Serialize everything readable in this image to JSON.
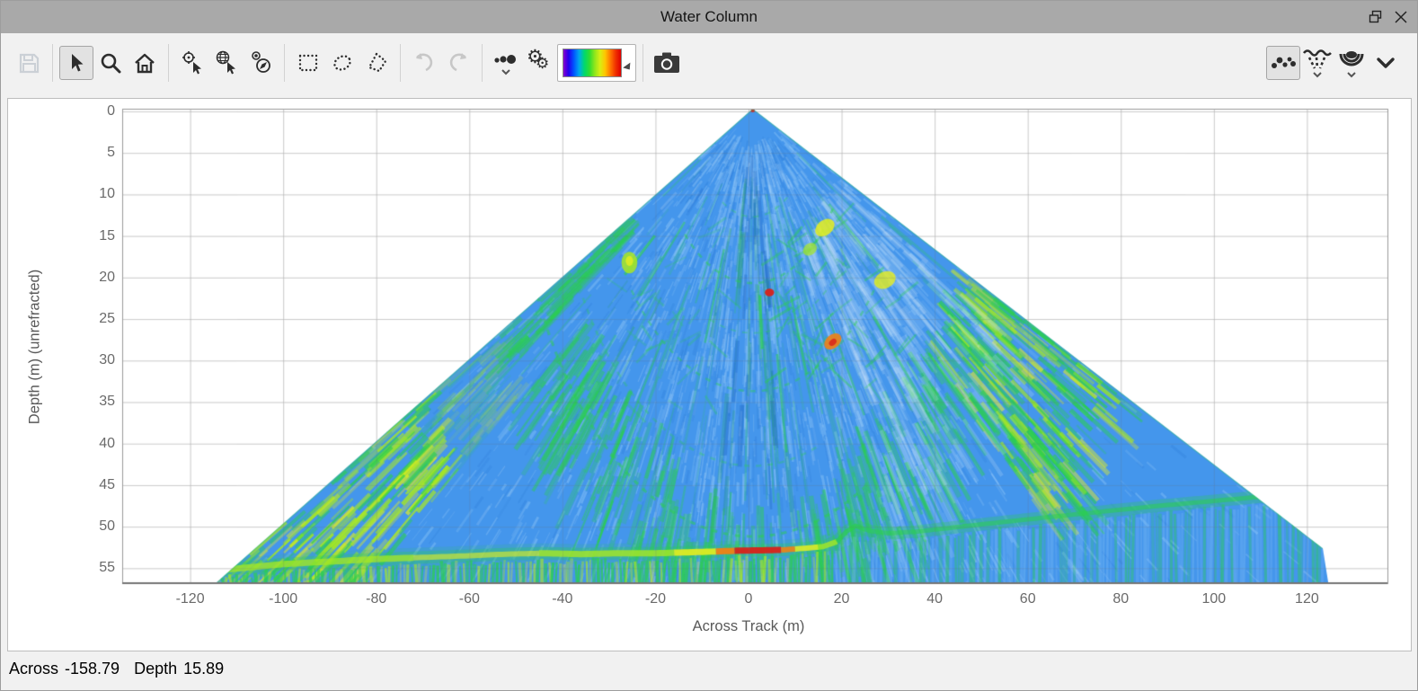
{
  "window": {
    "title": "Water Column"
  },
  "titlebar_controls": [
    {
      "icon": "float-window-icon"
    },
    {
      "icon": "close-icon"
    }
  ],
  "toolbar": {
    "groups": [
      {
        "buttons": [
          {
            "icon": "save-icon",
            "state": "disabled"
          }
        ]
      },
      {
        "buttons": [
          {
            "icon": "select-cursor-icon",
            "state": "selected"
          },
          {
            "icon": "zoom-magnifier-icon",
            "state": "normal"
          },
          {
            "icon": "home-icon",
            "state": "normal"
          }
        ]
      },
      {
        "buttons": [
          {
            "icon": "pick-target-cursor-icon",
            "state": "normal"
          },
          {
            "icon": "pick-globe-cursor-icon",
            "state": "normal"
          },
          {
            "icon": "compass-point-icon",
            "state": "normal"
          }
        ]
      },
      {
        "buttons": [
          {
            "icon": "select-rectangle-icon",
            "state": "normal"
          },
          {
            "icon": "select-ellipse-icon",
            "state": "normal"
          },
          {
            "icon": "select-polygon-icon",
            "state": "normal"
          }
        ]
      },
      {
        "buttons": [
          {
            "icon": "undo-icon",
            "state": "disabled"
          },
          {
            "icon": "redo-icon",
            "state": "disabled"
          }
        ]
      },
      {
        "buttons": [
          {
            "icon": "point-size-icon",
            "state": "normal"
          },
          {
            "icon": "settings-gears-icon",
            "state": "normal"
          },
          {
            "icon": "colormap-rainbow-swatch",
            "state": "normal"
          }
        ]
      },
      {
        "buttons": [
          {
            "icon": "camera-snapshot-icon",
            "state": "normal"
          }
        ]
      }
    ],
    "right_buttons": [
      {
        "icon": "points-display-icon",
        "state": "selected"
      },
      {
        "icon": "swath-fan-display-icon",
        "state": "normal"
      },
      {
        "icon": "beam-arcs-display-icon",
        "state": "normal"
      },
      {
        "icon": "collapse-chevron-icon",
        "state": "normal"
      }
    ],
    "colormap_stops": [
      "#8800cc",
      "#2200ee",
      "#0055ff",
      "#00a8ee",
      "#00d86e",
      "#30dd30",
      "#90e61c",
      "#d8ee14",
      "#ffc400",
      "#ff7600",
      "#f03000",
      "#dd0000"
    ]
  },
  "status": {
    "across_label": "Across",
    "across_value": "-158.79",
    "depth_label": "Depth",
    "depth_value": "15.89"
  },
  "chart_data": {
    "type": "watercolumn-fan-heatmap",
    "title": "Water Column",
    "xaxis": {
      "label": "Across Track (m)",
      "range": [
        -134.6,
        137.3
      ],
      "ticks": [
        -120,
        -100,
        -80,
        -60,
        -40,
        -20,
        0,
        20,
        40,
        60,
        80,
        100,
        120
      ]
    },
    "yaxis": {
      "label": "Depth (m) (unrefracted)",
      "range": [
        -0.32,
        56.8
      ],
      "ticks": [
        0,
        5,
        10,
        15,
        20,
        25,
        30,
        35,
        40,
        45,
        50,
        55
      ]
    },
    "grid": "on",
    "fan": {
      "apex": {
        "across": 0.9,
        "depth": -0.32
      },
      "outline": [
        [
          123.4,
          52.6
        ],
        [
          124.6,
          56.8
        ],
        [
          -114.5,
          56.8
        ]
      ],
      "left_edge_angle_deg": -63.7,
      "right_edge_angle_deg": 66.6,
      "colors": {
        "base": "#4496ec",
        "light": "#8ec6f8",
        "dark": "#2d7cd8",
        "sheen": "#d8ecfc",
        "green": "#2bd04c",
        "green_dark": "#1ea844",
        "yellow_green": "#a8e822",
        "yellow": "#e6ee1e",
        "orange": "#f08214",
        "red": "#d8231a"
      },
      "noise_seed": 11
    },
    "features": {
      "seafloor_points": [
        [
          -113,
          55.2
        ],
        [
          -100,
          54.5
        ],
        [
          -90,
          54.2
        ],
        [
          -80,
          53.9
        ],
        [
          -70,
          53.7
        ],
        [
          -60,
          53.5
        ],
        [
          -52,
          53.3
        ],
        [
          -44,
          53.2
        ],
        [
          -36,
          53.3
        ],
        [
          -28,
          53.2
        ],
        [
          -20,
          53.2
        ],
        [
          -14,
          53.1
        ],
        [
          -8,
          53.0
        ],
        [
          -3,
          52.9
        ],
        [
          2,
          52.85
        ],
        [
          7,
          52.8
        ],
        [
          12,
          52.6
        ],
        [
          16,
          52.4
        ],
        [
          19,
          51.8
        ],
        [
          21,
          50.6
        ],
        [
          23,
          49.9
        ],
        [
          26,
          50.5
        ],
        [
          30,
          50.8
        ],
        [
          36,
          50.6
        ],
        [
          44,
          50.1
        ],
        [
          52,
          49.6
        ],
        [
          62,
          49.0
        ],
        [
          74,
          48.3
        ],
        [
          88,
          47.5
        ],
        [
          102,
          46.8
        ],
        [
          114,
          46.2
        ],
        [
          123,
          45.8
        ]
      ],
      "seafloor_colors": [
        {
          "from": -113,
          "to": -72,
          "c": "yellow_green",
          "w": 7,
          "al": 0.75
        },
        {
          "from": -72,
          "to": -45,
          "c": "yellow",
          "w": 6,
          "al": 0.6
        },
        {
          "from": -45,
          "to": -16,
          "c": "yellow_green",
          "w": 7,
          "al": 0.8
        },
        {
          "from": -16,
          "to": -7,
          "c": "yellow",
          "w": 7,
          "al": 0.9
        },
        {
          "from": -7,
          "to": -3,
          "c": "orange",
          "w": 7,
          "al": 0.95
        },
        {
          "from": -3,
          "to": 7,
          "c": "red",
          "w": 7,
          "al": 0.95
        },
        {
          "from": 7,
          "to": 10,
          "c": "orange",
          "w": 6,
          "al": 0.9
        },
        {
          "from": 10,
          "to": 15,
          "c": "yellow",
          "w": 6,
          "al": 0.85
        },
        {
          "from": 15,
          "to": 19,
          "c": "yellow_green",
          "w": 6,
          "al": 0.8
        },
        {
          "from": 19,
          "to": 24,
          "c": "green",
          "w": 5,
          "al": 0.7
        },
        {
          "from": 24,
          "to": 124,
          "c": "green",
          "w": 5,
          "al": 0.55
        }
      ],
      "arcs": [
        {
          "r": 21,
          "a0": -44,
          "a1": 56,
          "al": 0.45,
          "w": 2.5
        },
        {
          "r": 34,
          "a0": -50,
          "a1": 56,
          "al": 0.4,
          "w": 2.5
        },
        {
          "r": 51.5,
          "a0": -64,
          "a1": 30,
          "al": 0.5,
          "w": 3
        },
        {
          "r": 13,
          "a0": -30,
          "a1": 40,
          "al": 0.3,
          "w": 2
        },
        {
          "r": 27,
          "a0": -20,
          "a1": 50,
          "al": 0.3,
          "w": 2
        },
        {
          "r": 43,
          "a0": -58,
          "a1": 20,
          "al": 0.3,
          "w": 2.5
        }
      ],
      "streaks": [
        {
          "ang": 4,
          "r0": 22.5,
          "r1": 29,
          "al": 0.7,
          "w": 3
        },
        {
          "ang": -54,
          "r0": 26,
          "r1": 34,
          "al": 0.6,
          "w": 3
        },
        {
          "ang": 20,
          "r0": 24,
          "r1": 34,
          "al": 0.5,
          "w": 2.5
        },
        {
          "ang": 33,
          "r0": 30,
          "r1": 44,
          "al": 0.4,
          "w": 2.5
        },
        {
          "ang": -20,
          "r0": 18,
          "r1": 30,
          "al": 0.45,
          "w": 2.5
        },
        {
          "ang": 10,
          "r0": 30,
          "r1": 42,
          "al": 0.5,
          "w": 2.5
        },
        {
          "ang": 46,
          "r0": 36,
          "r1": 52,
          "al": 0.45,
          "w": 3
        },
        {
          "ang": -35,
          "r0": 34,
          "r1": 46,
          "al": 0.4,
          "w": 2.5
        },
        {
          "ang": -47,
          "r0": 20,
          "r1": 33,
          "al": 0.45,
          "w": 2.5
        },
        {
          "ang": 55,
          "r0": 20,
          "r1": 33,
          "al": 0.4,
          "w": 2.5
        }
      ],
      "radial_groups": [
        {
          "ang0": -63.6,
          "ang1": -55.5,
          "r0": 58,
          "r1": 132,
          "n": 300,
          "palette": "bright"
        },
        {
          "ang0": -63.2,
          "ang1": -59,
          "r0": 28,
          "r1": 58,
          "n": 70,
          "palette": "green"
        },
        {
          "ang0": 52,
          "ang1": 66.4,
          "r0": 46,
          "r1": 82,
          "n": 260,
          "palette": "green_bright"
        },
        {
          "ang0": -55,
          "ang1": -20,
          "r0": 42,
          "r1": 58,
          "n": 130,
          "palette": "green"
        },
        {
          "ang0": 20,
          "ang1": 52,
          "r0": 44,
          "r1": 60,
          "n": 100,
          "palette": "green"
        },
        {
          "ang0": -20,
          "ang1": 20,
          "r0": 46,
          "r1": 55,
          "n": 60,
          "palette": "green"
        },
        {
          "ang0": 30,
          "ang1": 64,
          "r0": 18,
          "r1": 60,
          "n": 320,
          "palette": "sheen"
        },
        {
          "ang0": -10,
          "ang1": 10,
          "r0": 4,
          "r1": 46,
          "n": 34,
          "palette": "dark"
        }
      ],
      "dash_clusters": [
        {
          "a0": 2,
          "a1": 36,
          "d0": 12,
          "d1": 34,
          "n": 48,
          "al": 0.45
        },
        {
          "a0": -32,
          "a1": -6,
          "d0": 14,
          "d1": 36,
          "n": 24,
          "al": 0.3
        }
      ],
      "blobs": [
        {
          "a": 4.5,
          "d": 21.8,
          "rx": 1.0,
          "ry": 0.45,
          "rot": 0,
          "c": "red",
          "al": 0.95
        },
        {
          "a": 0.9,
          "d": -0.1,
          "rx": 0.5,
          "ry": 0.22,
          "rot": 0,
          "c": "red",
          "al": 0.9
        },
        {
          "a": 16.4,
          "d": 14.0,
          "rx": 2.3,
          "ry": 0.9,
          "rot": -38,
          "c": "yellow",
          "al": 0.85
        },
        {
          "a": 13.2,
          "d": 16.6,
          "rx": 1.6,
          "ry": 0.7,
          "rot": -35,
          "c": "yellow_green",
          "al": 0.7
        },
        {
          "a": 29.3,
          "d": 20.3,
          "rx": 2.4,
          "ry": 1.0,
          "rot": -25,
          "c": "yellow",
          "al": 0.8
        },
        {
          "a": 18.1,
          "d": 27.7,
          "rx": 2.1,
          "ry": 0.8,
          "rot": -40,
          "c": "orange",
          "al": 0.9
        },
        {
          "a": 18.1,
          "d": 27.8,
          "rx": 0.9,
          "ry": 0.35,
          "rot": -40,
          "c": "red",
          "al": 0.85
        },
        {
          "a": -25.6,
          "d": 18.2,
          "rx": 1.7,
          "ry": 1.3,
          "rot": 0,
          "c": "yellow_green",
          "al": 0.85
        },
        {
          "a": -25.6,
          "d": 18.0,
          "rx": 0.8,
          "ry": 0.6,
          "rot": 0,
          "c": "yellow",
          "al": 0.8
        }
      ]
    }
  }
}
